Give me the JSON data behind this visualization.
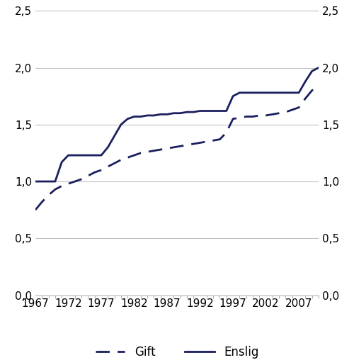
{
  "title": "",
  "line_color": "#1a1f5e",
  "xlim": [
    1967,
    2010
  ],
  "ylim": [
    0.0,
    2.5
  ],
  "yticks": [
    0.0,
    0.5,
    1.0,
    1.5,
    2.0,
    2.5
  ],
  "xticks": [
    1967,
    1972,
    1977,
    1982,
    1987,
    1992,
    1997,
    2002,
    2007
  ],
  "enslig_x": [
    1967,
    1968,
    1969,
    1970,
    1971,
    1972,
    1973,
    1974,
    1975,
    1976,
    1977,
    1978,
    1979,
    1980,
    1981,
    1982,
    1983,
    1984,
    1985,
    1986,
    1987,
    1988,
    1989,
    1990,
    1991,
    1992,
    1993,
    1994,
    1995,
    1996,
    1997,
    1998,
    1999,
    2000,
    2001,
    2002,
    2003,
    2004,
    2005,
    2006,
    2007,
    2008,
    2009,
    2010
  ],
  "enslig_y": [
    1.0,
    1.0,
    1.0,
    1.0,
    1.17,
    1.23,
    1.23,
    1.23,
    1.23,
    1.23,
    1.23,
    1.3,
    1.4,
    1.5,
    1.55,
    1.57,
    1.57,
    1.58,
    1.58,
    1.59,
    1.59,
    1.6,
    1.6,
    1.61,
    1.61,
    1.62,
    1.62,
    1.62,
    1.62,
    1.62,
    1.75,
    1.78,
    1.78,
    1.78,
    1.78,
    1.78,
    1.78,
    1.78,
    1.78,
    1.78,
    1.78,
    1.88,
    1.97,
    2.0
  ],
  "gift_x": [
    1967,
    1968,
    1969,
    1970,
    1971,
    1972,
    1973,
    1974,
    1975,
    1976,
    1977,
    1978,
    1979,
    1980,
    1981,
    1982,
    1983,
    1984,
    1985,
    1986,
    1987,
    1988,
    1989,
    1990,
    1991,
    1992,
    1993,
    1994,
    1995,
    1996,
    1997,
    1998,
    1999,
    2000,
    2001,
    2002,
    2003,
    2004,
    2005,
    2006,
    2007,
    2008,
    2009,
    2010
  ],
  "gift_y": [
    0.75,
    0.82,
    0.88,
    0.93,
    0.96,
    0.98,
    1.0,
    1.02,
    1.05,
    1.08,
    1.1,
    1.13,
    1.16,
    1.19,
    1.21,
    1.23,
    1.25,
    1.26,
    1.27,
    1.28,
    1.29,
    1.3,
    1.31,
    1.32,
    1.33,
    1.34,
    1.35,
    1.36,
    1.37,
    1.43,
    1.55,
    1.56,
    1.57,
    1.57,
    1.58,
    1.58,
    1.59,
    1.6,
    1.61,
    1.63,
    1.65,
    1.73,
    1.8,
    1.84
  ],
  "legend_gift": "Gift",
  "legend_enslig": "Enslig",
  "fontsize_ticks": 11,
  "fontsize_legend": 12,
  "grid_color": "#c0c0c0",
  "grid_lw": 0.8
}
